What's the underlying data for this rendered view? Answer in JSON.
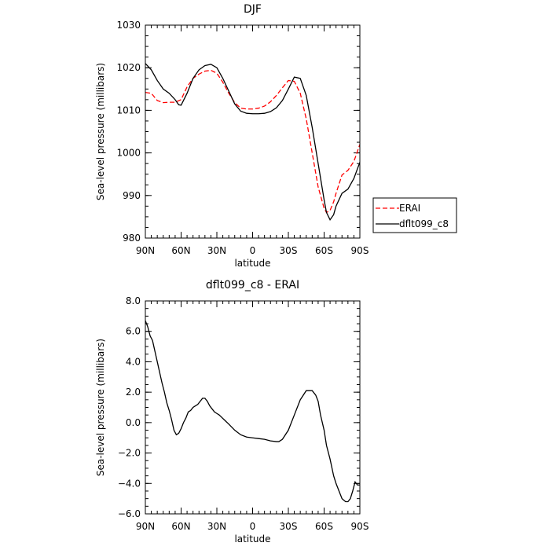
{
  "chart_data": [
    {
      "type": "line",
      "title": "DJF",
      "xlabel": "latitude",
      "ylabel": "Sea-level pressure (millibars)",
      "xlim": [
        90,
        -90
      ],
      "ylim": [
        980,
        1030
      ],
      "xticks": [
        90,
        60,
        30,
        0,
        -30,
        -60,
        -90
      ],
      "xtick_labels": [
        "90N",
        "60N",
        "30N",
        "0",
        "30S",
        "60S",
        "90S"
      ],
      "yticks": [
        980,
        990,
        1000,
        1010,
        1020,
        1030
      ],
      "ytick_labels": [
        "980",
        "990",
        "1000",
        "1010",
        "1020",
        "1030"
      ],
      "legend_position": "right",
      "series": [
        {
          "name": "ERAI",
          "color": "#ff0000",
          "dash": "dashed",
          "x": [
            90,
            85,
            80,
            75,
            70,
            65,
            60,
            55,
            50,
            45,
            40,
            35,
            30,
            25,
            20,
            15,
            10,
            5,
            0,
            -5,
            -10,
            -15,
            -20,
            -25,
            -30,
            -35,
            -40,
            -45,
            -50,
            -55,
            -60,
            -62,
            -65,
            -68,
            -70,
            -75,
            -80,
            -85,
            -90
          ],
          "values": [
            1014.2,
            1014.0,
            1012.3,
            1011.8,
            1011.9,
            1011.9,
            1012.5,
            1015.5,
            1017.5,
            1018.5,
            1019.2,
            1019.4,
            1018.7,
            1016.6,
            1014.0,
            1011.8,
            1010.5,
            1010.3,
            1010.3,
            1010.5,
            1011.0,
            1012.0,
            1013.5,
            1015.3,
            1017.0,
            1016.8,
            1014.0,
            1008.0,
            1000.0,
            992.0,
            987.0,
            986.0,
            986.5,
            988.5,
            990.5,
            994.8,
            995.9,
            998.0,
            1002.0
          ]
        },
        {
          "name": "dflt099_c8",
          "color": "#000000",
          "dash": "solid",
          "x": [
            90,
            85,
            80,
            75,
            70,
            65,
            62,
            60,
            55,
            50,
            45,
            40,
            35,
            30,
            25,
            20,
            15,
            10,
            5,
            0,
            -5,
            -10,
            -15,
            -20,
            -25,
            -30,
            -35,
            -40,
            -45,
            -50,
            -55,
            -60,
            -62,
            -65,
            -68,
            -70,
            -75,
            -80,
            -85,
            -90
          ],
          "values": [
            1021.0,
            1019.5,
            1017.0,
            1015.0,
            1014.0,
            1012.5,
            1011.3,
            1011.2,
            1014.0,
            1017.5,
            1019.5,
            1020.5,
            1020.8,
            1020.0,
            1017.5,
            1014.5,
            1011.5,
            1009.8,
            1009.3,
            1009.2,
            1009.2,
            1009.3,
            1009.7,
            1010.6,
            1012.3,
            1015.0,
            1017.8,
            1017.5,
            1013.5,
            1006.0,
            997.5,
            989.0,
            986.0,
            984.3,
            985.5,
            987.5,
            990.5,
            991.5,
            994.0,
            997.8
          ]
        }
      ]
    },
    {
      "type": "line",
      "title": "dflt099_c8 - ERAI",
      "xlabel": "latitude",
      "ylabel": "Sea-level pressure (millibars)",
      "xlim": [
        90,
        -90
      ],
      "ylim": [
        -6,
        8
      ],
      "xticks": [
        90,
        60,
        30,
        0,
        -30,
        -60,
        -90
      ],
      "xtick_labels": [
        "90N",
        "60N",
        "30N",
        "0",
        "30S",
        "60S",
        "90S"
      ],
      "yticks": [
        -6,
        -4,
        -2,
        0,
        2,
        4,
        6,
        8
      ],
      "ytick_labels": [
        "−6.0",
        "−4.0",
        "−2.0",
        "0.0",
        "2.0",
        "4.0",
        "6.0",
        "8.0"
      ],
      "series": [
        {
          "color": "#000000",
          "dash": "solid",
          "x": [
            90,
            88,
            86,
            84,
            82,
            80,
            78,
            76,
            74,
            72,
            70,
            68,
            66,
            64,
            62,
            60,
            58,
            56,
            54,
            52,
            50,
            48,
            46,
            44,
            42,
            40,
            38,
            36,
            34,
            32,
            30,
            28,
            26,
            24,
            20,
            15,
            10,
            5,
            0,
            -5,
            -10,
            -15,
            -20,
            -22,
            -25,
            -30,
            -35,
            -40,
            -45,
            -50,
            -53,
            -55,
            -57,
            -60,
            -62,
            -65,
            -68,
            -70,
            -75,
            -78,
            -80,
            -82,
            -84,
            -86,
            -88,
            -90
          ],
          "values": [
            6.7,
            6.3,
            5.7,
            5.4,
            4.7,
            4.0,
            3.3,
            2.6,
            2.0,
            1.3,
            0.8,
            0.2,
            -0.5,
            -0.8,
            -0.7,
            -0.4,
            0.0,
            0.3,
            0.7,
            0.8,
            1.0,
            1.1,
            1.2,
            1.4,
            1.6,
            1.6,
            1.4,
            1.1,
            0.9,
            0.7,
            0.6,
            0.5,
            0.35,
            0.2,
            -0.1,
            -0.5,
            -0.8,
            -0.95,
            -1.0,
            -1.05,
            -1.1,
            -1.2,
            -1.25,
            -1.25,
            -1.1,
            -0.5,
            0.5,
            1.5,
            2.1,
            2.1,
            1.8,
            1.4,
            0.5,
            -0.5,
            -1.5,
            -2.4,
            -3.5,
            -4.0,
            -5.0,
            -5.2,
            -5.2,
            -5.0,
            -4.5,
            -3.9,
            -4.1,
            -4.1
          ]
        }
      ]
    }
  ]
}
